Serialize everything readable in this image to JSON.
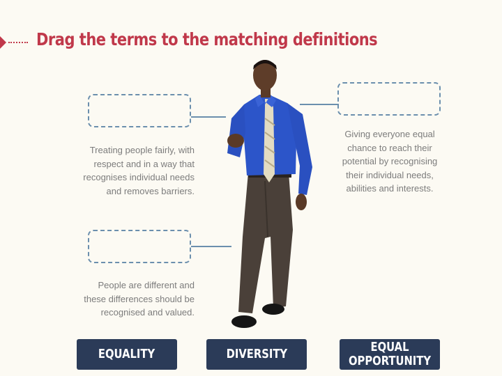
{
  "title": "Drag the terms to the matching definitions",
  "definitions": {
    "top_left": "Treating people fairly, with\nrespect and in a way that\nrecognises individual needs\nand removes barriers.",
    "top_right": "Giving everyone equal\nchance to reach their\npotential by recognising\ntheir individual needs,\nabilities and interests.",
    "bottom_left": "People are different and\nthese differences should be\nrecognised and valued."
  },
  "terms": {
    "equality": "EQUALITY",
    "diversity": "DIVERSITY",
    "equal_opportunity": "EQUAL\nOPPORTUNITY"
  },
  "colors": {
    "title": "#c0384a",
    "term_bg": "#2b3b58",
    "dropzone_border": "#6b8fad",
    "definition_text": "#7c7c7c",
    "background": "#fcfaf3"
  }
}
